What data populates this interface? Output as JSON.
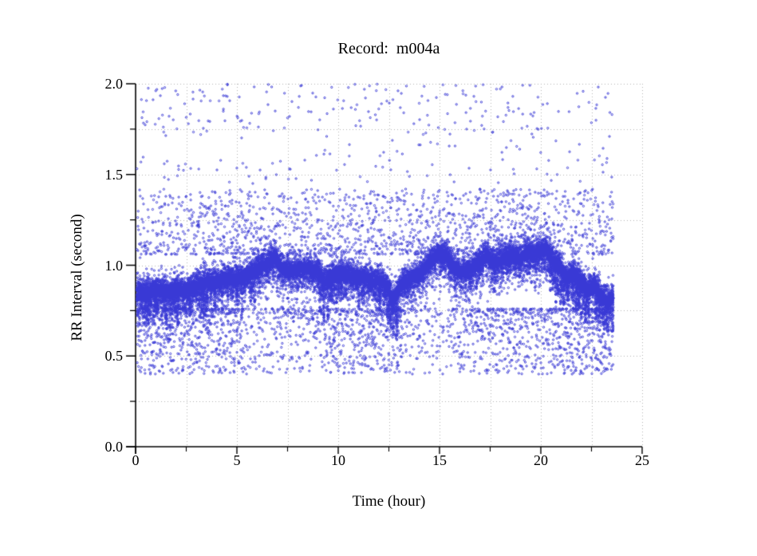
{
  "page": {
    "background": "#ffffff"
  },
  "chart_data": {
    "type": "scatter",
    "title": "Record:  m004a",
    "xlabel": "Time (hour)",
    "ylabel": "RR Interval (second)",
    "xlim": [
      0,
      25
    ],
    "ylim": [
      0.0,
      2.0
    ],
    "x_tick_values": [
      0,
      5,
      10,
      15,
      20,
      25
    ],
    "x_tick_labels": [
      "0",
      "5",
      "10",
      "15",
      "20",
      "25"
    ],
    "x_minor_step": 2.5,
    "y_tick_values": [
      0.0,
      0.5,
      1.0,
      1.5,
      2.0
    ],
    "y_tick_labels": [
      "0.0",
      "0.5",
      "1.0",
      "1.5",
      "2.0"
    ],
    "y_minor_step": 0.25,
    "grid": {
      "style": "dotted",
      "color": "#b3b3b3",
      "x_step": 2.5,
      "y_step": 0.25
    },
    "axis_color": "#000000",
    "point": {
      "shape": "open-circle",
      "color": "#3a3ad6",
      "radius": 1.15
    },
    "time_range": [
      0.06,
      23.58
    ],
    "seed": 42,
    "band_mean": [
      [
        0.06,
        0.85
      ],
      [
        0.5,
        0.84
      ],
      [
        1.0,
        0.86
      ],
      [
        1.5,
        0.84
      ],
      [
        2.0,
        0.86
      ],
      [
        2.5,
        0.85
      ],
      [
        3.0,
        0.88
      ],
      [
        3.5,
        0.9
      ],
      [
        4.0,
        0.9
      ],
      [
        4.5,
        0.92
      ],
      [
        5.0,
        0.92
      ],
      [
        5.5,
        0.94
      ],
      [
        6.0,
        0.97
      ],
      [
        6.5,
        1.0
      ],
      [
        6.9,
        1.03
      ],
      [
        7.2,
        0.98
      ],
      [
        7.6,
        0.96
      ],
      [
        8.0,
        0.97
      ],
      [
        8.6,
        0.97
      ],
      [
        9.0,
        0.96
      ],
      [
        9.35,
        0.89
      ],
      [
        9.6,
        0.93
      ],
      [
        10.0,
        0.95
      ],
      [
        10.5,
        0.94
      ],
      [
        11.0,
        0.93
      ],
      [
        11.5,
        0.92
      ],
      [
        12.0,
        0.91
      ],
      [
        12.4,
        0.88
      ],
      [
        12.75,
        0.8
      ],
      [
        13.1,
        0.89
      ],
      [
        13.6,
        0.92
      ],
      [
        14.0,
        0.94
      ],
      [
        14.5,
        1.0
      ],
      [
        14.9,
        1.06
      ],
      [
        15.3,
        1.05
      ],
      [
        15.7,
        0.98
      ],
      [
        16.1,
        0.96
      ],
      [
        16.6,
        0.97
      ],
      [
        17.0,
        1.01
      ],
      [
        17.3,
        1.05
      ],
      [
        17.7,
        1.0
      ],
      [
        18.1,
        1.02
      ],
      [
        18.5,
        1.05
      ],
      [
        19.0,
        1.03
      ],
      [
        19.35,
        1.07
      ],
      [
        19.7,
        1.05
      ],
      [
        20.0,
        1.07
      ],
      [
        20.3,
        1.08
      ],
      [
        20.65,
        1.01
      ],
      [
        21.0,
        0.97
      ],
      [
        21.3,
        0.92
      ],
      [
        21.6,
        0.95
      ],
      [
        22.0,
        0.9
      ],
      [
        22.3,
        0.86
      ],
      [
        22.65,
        0.88
      ],
      [
        23.0,
        0.82
      ],
      [
        23.3,
        0.79
      ],
      [
        23.58,
        0.82
      ]
    ],
    "band": {
      "sd_tight": 0.018,
      "sd_loose": 0.05,
      "upper_fuzz": 0.07,
      "points_per_column": 26
    },
    "stroke_zones": [
      [
        0.0,
        6.3,
        0.5,
        0.2
      ],
      [
        6.3,
        9.0,
        0.2,
        0.12
      ],
      [
        9.0,
        9.7,
        0.55,
        0.22
      ],
      [
        9.7,
        12.4,
        0.45,
        0.18
      ],
      [
        12.4,
        13.1,
        0.6,
        0.27
      ],
      [
        13.1,
        14.2,
        0.2,
        0.1
      ],
      [
        14.2,
        16.2,
        0.25,
        0.12
      ],
      [
        16.2,
        20.3,
        0.3,
        0.13
      ],
      [
        20.3,
        23.6,
        0.5,
        0.22
      ]
    ],
    "below_outliers": {
      "range": [
        0.4,
        0.76
      ],
      "density": [
        [
          0,
          4.5
        ],
        [
          5.3,
          2.0
        ],
        [
          6.6,
          2.5
        ],
        [
          8.0,
          3.0
        ],
        [
          9.5,
          4.0
        ],
        [
          13.2,
          1.8
        ],
        [
          15.6,
          3.0
        ],
        [
          17.0,
          3.5
        ],
        [
          20.8,
          4.5
        ],
        [
          23.6,
          0
        ]
      ]
    },
    "above_outliers": {
      "range": [
        1.06,
        1.42
      ],
      "density": [
        [
          0,
          2.2
        ],
        [
          3.0,
          2.8
        ],
        [
          7.0,
          2.2
        ],
        [
          10.0,
          2.4
        ],
        [
          13.0,
          2.8
        ],
        [
          17.0,
          3.2
        ],
        [
          21.0,
          2.4
        ],
        [
          23.6,
          0
        ]
      ]
    },
    "high_outliers": {
      "range": [
        1.44,
        2.0
      ],
      "density": [
        [
          0,
          0.5
        ],
        [
          2.2,
          0.3
        ],
        [
          3.2,
          0.45
        ],
        [
          5.2,
          0.3
        ],
        [
          7.3,
          0.5
        ],
        [
          9.2,
          0.3
        ],
        [
          10.3,
          0.35
        ],
        [
          13.0,
          0.45
        ],
        [
          16.8,
          0.35
        ],
        [
          18.0,
          0.45
        ],
        [
          21.5,
          0.3
        ],
        [
          23.6,
          0
        ]
      ]
    }
  }
}
